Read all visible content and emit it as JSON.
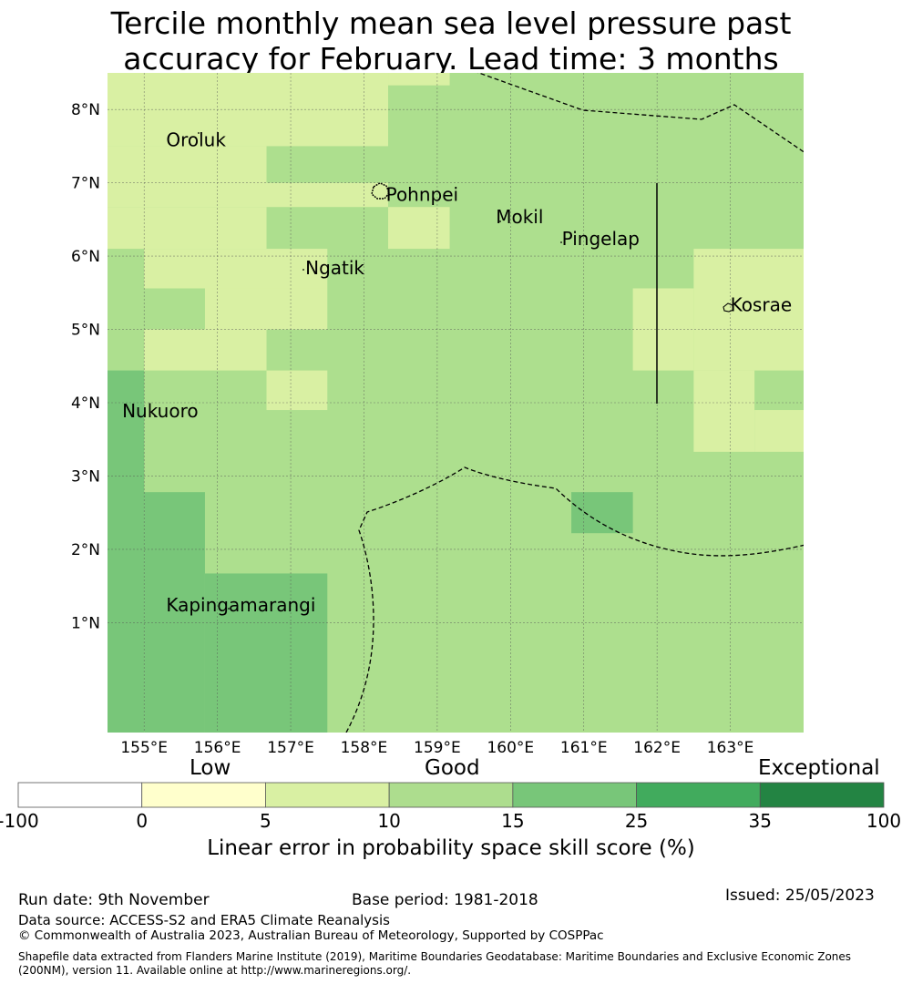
{
  "title": {
    "line1": "Tercile monthly mean sea level pressure past",
    "line2": "accuracy for February. Lead time: 3 months"
  },
  "map": {
    "lon_range": [
      154.5,
      164.0
    ],
    "lat_range": [
      -0.5,
      8.5
    ],
    "x_ticks": [
      {
        "value": 155,
        "label": "155°E"
      },
      {
        "value": 156,
        "label": "156°E"
      },
      {
        "value": 157,
        "label": "157°E"
      },
      {
        "value": 158,
        "label": "158°E"
      },
      {
        "value": 159,
        "label": "159°E"
      },
      {
        "value": 160,
        "label": "160°E"
      },
      {
        "value": 161,
        "label": "161°E"
      },
      {
        "value": 162,
        "label": "162°E"
      },
      {
        "value": 163,
        "label": "163°E"
      }
    ],
    "y_ticks": [
      {
        "value": 8,
        "label": "8°N"
      },
      {
        "value": 7,
        "label": "7°N"
      },
      {
        "value": 6,
        "label": "6°N"
      },
      {
        "value": 5,
        "label": "5°N"
      },
      {
        "value": 4,
        "label": "4°N"
      },
      {
        "value": 3,
        "label": "3°N"
      },
      {
        "value": 2,
        "label": "2°N"
      },
      {
        "value": 1,
        "label": "1°N"
      }
    ],
    "base_color": "#addf8e",
    "skill_cells": [
      {
        "lon": [
          154.5,
          158.33
        ],
        "lat": [
          8.0,
          8.5
        ],
        "color": "#d9f0a3"
      },
      {
        "lon": [
          158.33,
          159.17
        ],
        "lat": [
          8.33,
          8.5
        ],
        "color": "#d9f0a3"
      },
      {
        "lon": [
          154.5,
          158.33
        ],
        "lat": [
          7.5,
          8.0
        ],
        "color": "#d9f0a3"
      },
      {
        "lon": [
          154.5,
          156.67
        ],
        "lat": [
          6.9,
          7.5
        ],
        "color": "#d9f0a3"
      },
      {
        "lon": [
          154.5,
          158.33
        ],
        "lat": [
          6.67,
          7.0
        ],
        "color": "#d9f0a3"
      },
      {
        "lon": [
          154.5,
          156.67
        ],
        "lat": [
          6.1,
          6.67
        ],
        "color": "#d9f0a3"
      },
      {
        "lon": [
          158.33,
          159.17
        ],
        "lat": [
          6.1,
          6.67
        ],
        "color": "#d9f0a3"
      },
      {
        "lon": [
          155.0,
          157.5
        ],
        "lat": [
          5.56,
          6.1
        ],
        "color": "#d9f0a3"
      },
      {
        "lon": [
          155.83,
          157.5
        ],
        "lat": [
          5.0,
          5.56
        ],
        "color": "#d9f0a3"
      },
      {
        "lon": [
          155.0,
          156.67
        ],
        "lat": [
          4.44,
          5.0
        ],
        "color": "#d9f0a3"
      },
      {
        "lon": [
          156.67,
          157.5
        ],
        "lat": [
          3.9,
          4.44
        ],
        "color": "#d9f0a3"
      },
      {
        "lon": [
          161.67,
          162.5
        ],
        "lat": [
          4.44,
          5.56
        ],
        "color": "#d9f0a3"
      },
      {
        "lon": [
          162.5,
          164.0
        ],
        "lat": [
          4.44,
          6.1
        ],
        "color": "#d9f0a3"
      },
      {
        "lon": [
          162.5,
          163.33
        ],
        "lat": [
          3.33,
          4.44
        ],
        "color": "#d9f0a3"
      },
      {
        "lon": [
          163.33,
          164.0
        ],
        "lat": [
          3.33,
          3.9
        ],
        "color": "#d9f0a3"
      },
      {
        "lon": [
          154.5,
          155.0
        ],
        "lat": [
          -0.5,
          4.44
        ],
        "color": "#78c679"
      },
      {
        "lon": [
          155.0,
          155.83
        ],
        "lat": [
          -0.5,
          2.78
        ],
        "color": "#78c679"
      },
      {
        "lon": [
          155.83,
          157.5
        ],
        "lat": [
          -0.5,
          1.67
        ],
        "color": "#78c679"
      },
      {
        "lon": [
          160.83,
          161.67
        ],
        "lat": [
          2.22,
          2.78
        ],
        "color": "#78c679"
      }
    ],
    "places": [
      {
        "name": "Oroluk",
        "lon": 155.3,
        "lat": 7.6
      },
      {
        "name": "Pohnpei",
        "lon": 158.3,
        "lat": 6.85
      },
      {
        "name": "Mokil",
        "lon": 159.8,
        "lat": 6.55
      },
      {
        "name": "Pingelap",
        "lon": 160.7,
        "lat": 6.25
      },
      {
        "name": "Ngatik",
        "lon": 157.2,
        "lat": 5.85
      },
      {
        "name": "Kosrae",
        "lon": 163.0,
        "lat": 5.35
      },
      {
        "name": "Nukuoro",
        "lon": 154.7,
        "lat": 3.9
      },
      {
        "name": "Kapingamarangi",
        "lon": 155.3,
        "lat": 1.25
      }
    ]
  },
  "colorbar": {
    "categories": {
      "low": "Low",
      "good": "Good",
      "exceptional": "Exceptional"
    },
    "bins": [
      {
        "from": -100,
        "to": 0,
        "color": "#ffffff"
      },
      {
        "from": 0,
        "to": 5,
        "color": "#ffffcc"
      },
      {
        "from": 5,
        "to": 10,
        "color": "#d9f0a3"
      },
      {
        "from": 10,
        "to": 15,
        "color": "#addd8e"
      },
      {
        "from": 15,
        "to": 25,
        "color": "#78c679"
      },
      {
        "from": 25,
        "to": 35,
        "color": "#41ab5d"
      },
      {
        "from": 35,
        "to": 100,
        "color": "#238443"
      }
    ],
    "ticks": [
      "-100",
      "0",
      "5",
      "10",
      "15",
      "25",
      "35",
      "100"
    ],
    "label": "Linear error in probability space skill score (%)"
  },
  "footer": {
    "run_date": "Run date: 9th November",
    "base_period": "Base period: 1981-2018",
    "issued": "Issued: 25/05/2023",
    "data_source": "Data source: ACCESS-S2 and ERA5 Climate Reanalysis",
    "copyright": "© Commonwealth of Australia 2023, Australian Bureau of Meteorology, Supported by COSPPac",
    "shapefile_line1": "Shapefile data extracted from Flanders Marine Institute (2019), Maritime Boundaries Geodatabase: Maritime Boundaries and Exclusive Economic Zones",
    "shapefile_line2": "(200NM), version 11. Available online at http://www.marineregions.org/."
  }
}
